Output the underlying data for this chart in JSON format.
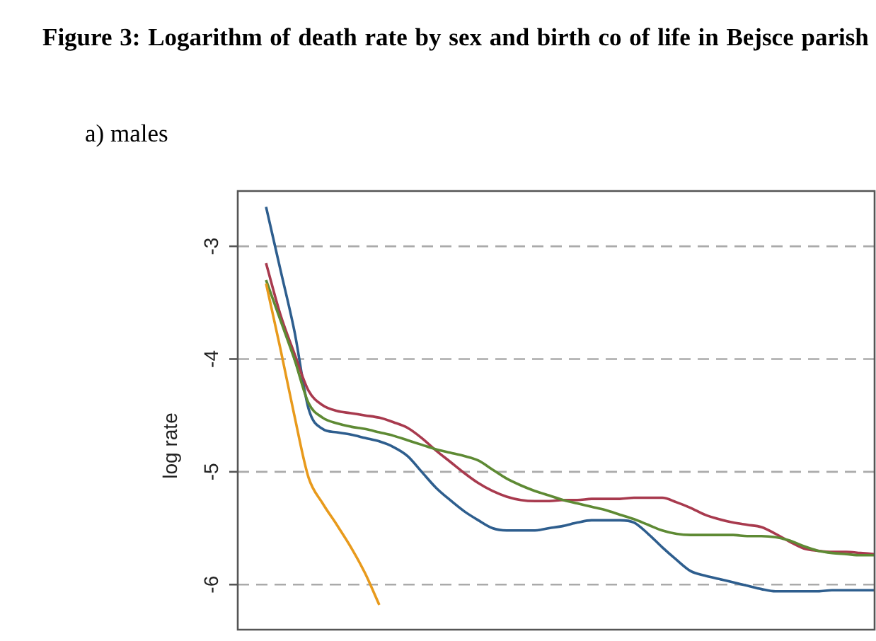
{
  "chart_data": {
    "type": "line",
    "title": "Figure 3: Logarithm of death rate by sex and birth co of life in Bejsce parish",
    "subtitle": "a) males",
    "ylabel": "log rate",
    "categories": [
      null,
      null,
      null,
      null,
      null,
      null,
      null,
      null,
      null,
      null,
      null,
      null,
      null,
      null,
      null,
      null,
      null,
      null,
      null,
      null,
      null,
      null,
      null,
      null,
      null,
      null,
      null,
      null,
      null,
      null,
      null,
      null,
      null,
      null,
      null,
      null,
      null,
      null,
      null,
      null,
      null,
      null,
      null,
      null,
      null,
      null
    ],
    "series": [
      {
        "color": "#e89a1c",
        "values": [
          null,
          null,
          -3.33,
          -3.9,
          -4.5,
          -5.05,
          -5.28,
          -5.47,
          -5.67,
          -5.9,
          -6.18,
          null,
          null,
          null,
          null,
          null,
          null,
          null,
          null,
          null,
          null,
          null,
          null,
          null,
          null,
          null,
          null,
          null,
          null,
          null,
          null,
          null,
          null,
          null,
          null,
          null,
          null,
          null,
          null,
          null,
          null,
          null,
          null,
          null,
          null,
          null
        ]
      },
      {
        "color": "#5e8a34",
        "values": [
          null,
          null,
          -3.3,
          -3.65,
          -4.0,
          -4.39,
          -4.52,
          -4.57,
          -4.6,
          -4.62,
          -4.65,
          -4.68,
          -4.72,
          -4.76,
          -4.8,
          -4.83,
          -4.86,
          -4.9,
          -4.98,
          -5.06,
          -5.12,
          -5.17,
          -5.21,
          -5.25,
          -5.28,
          -5.31,
          -5.34,
          -5.38,
          -5.42,
          -5.47,
          -5.52,
          -5.55,
          -5.56,
          -5.56,
          -5.56,
          -5.56,
          -5.57,
          -5.57,
          -5.58,
          -5.61,
          -5.66,
          -5.7,
          -5.72,
          -5.73,
          -5.74,
          -5.74
        ]
      },
      {
        "color": "#a83a4e",
        "values": [
          null,
          null,
          -3.15,
          -3.6,
          -3.95,
          -4.28,
          -4.41,
          -4.46,
          -4.48,
          -4.5,
          -4.52,
          -4.56,
          -4.61,
          -4.7,
          -4.81,
          -4.91,
          -5.01,
          -5.1,
          -5.17,
          -5.22,
          -5.25,
          -5.26,
          -5.26,
          -5.25,
          -5.25,
          -5.24,
          -5.24,
          -5.24,
          -5.23,
          -5.23,
          -5.23,
          -5.27,
          -5.32,
          -5.38,
          -5.42,
          -5.45,
          -5.47,
          -5.49,
          -5.55,
          -5.62,
          -5.68,
          -5.7,
          -5.71,
          -5.71,
          -5.72,
          -5.73
        ]
      },
      {
        "color": "#2e5e8e",
        "values": [
          null,
          null,
          -2.65,
          -3.2,
          -3.75,
          -4.44,
          -4.62,
          -4.65,
          -4.67,
          -4.7,
          -4.73,
          -4.78,
          -4.86,
          -5.0,
          -5.14,
          -5.25,
          -5.35,
          -5.43,
          -5.5,
          -5.52,
          -5.52,
          -5.52,
          -5.5,
          -5.48,
          -5.45,
          -5.43,
          -5.43,
          -5.43,
          -5.45,
          -5.55,
          -5.67,
          -5.78,
          -5.88,
          -5.92,
          -5.95,
          -5.98,
          -6.01,
          -6.04,
          -6.06,
          -6.06,
          -6.06,
          -6.06,
          -6.05,
          -6.05,
          -6.05,
          -6.05
        ]
      }
    ],
    "ylim": [
      -6.4,
      -2.51
    ],
    "yticks": [
      -6,
      -5,
      -4,
      -3
    ],
    "grid": "y",
    "legend": false,
    "tick_labels": "y",
    "line_style": "solid",
    "marker": "none"
  }
}
